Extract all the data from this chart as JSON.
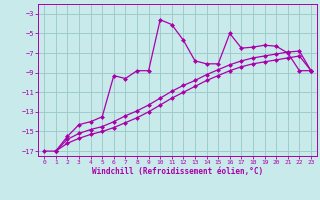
{
  "xlabel": "Windchill (Refroidissement éolien,°C)",
  "bg_color": "#c8eaea",
  "grid_color": "#a0cccc",
  "line_color": "#aa00aa",
  "xlim": [
    -0.5,
    23.5
  ],
  "ylim": [
    -17.5,
    -2.0
  ],
  "yticks": [
    -17,
    -15,
    -13,
    -11,
    -9,
    -7,
    -5,
    -3
  ],
  "xticks": [
    0,
    1,
    2,
    3,
    4,
    5,
    6,
    7,
    8,
    9,
    10,
    11,
    12,
    13,
    14,
    15,
    16,
    17,
    18,
    19,
    20,
    21,
    22,
    23
  ],
  "curve1_x": [
    0,
    1,
    2,
    3,
    4,
    5,
    6,
    7,
    8,
    9,
    10,
    11,
    12,
    13,
    14,
    15,
    16,
    17,
    18,
    19,
    20,
    21,
    22,
    23
  ],
  "curve1_y": [
    -17.0,
    -17.0,
    -15.5,
    -14.3,
    -14.0,
    -13.5,
    -9.3,
    -9.6,
    -8.8,
    -8.8,
    -3.6,
    -4.1,
    -5.7,
    -7.8,
    -8.1,
    -8.1,
    -5.0,
    -6.5,
    -6.4,
    -6.2,
    -6.3,
    -7.0,
    -8.8,
    -8.8
  ],
  "curve2_x": [
    1,
    2,
    3,
    4,
    5,
    6,
    7,
    8,
    9,
    10,
    11,
    12,
    13,
    14,
    15,
    16,
    17,
    18,
    19,
    20,
    21,
    22,
    23
  ],
  "curve2_y": [
    -17.0,
    -15.8,
    -15.2,
    -14.8,
    -14.5,
    -14.0,
    -13.4,
    -12.9,
    -12.3,
    -11.6,
    -10.9,
    -10.3,
    -9.8,
    -9.2,
    -8.7,
    -8.2,
    -7.8,
    -7.5,
    -7.3,
    -7.1,
    -6.9,
    -6.8,
    -8.8
  ],
  "curve3_x": [
    1,
    2,
    3,
    4,
    5,
    6,
    7,
    8,
    9,
    10,
    11,
    12,
    13,
    14,
    15,
    16,
    17,
    18,
    19,
    20,
    21,
    22,
    23
  ],
  "curve3_y": [
    -17.0,
    -16.2,
    -15.7,
    -15.3,
    -15.0,
    -14.6,
    -14.1,
    -13.6,
    -13.0,
    -12.3,
    -11.6,
    -11.0,
    -10.4,
    -9.8,
    -9.3,
    -8.8,
    -8.4,
    -8.1,
    -7.9,
    -7.7,
    -7.5,
    -7.3,
    -8.8
  ],
  "marker_size": 2.5,
  "line_width": 0.9
}
